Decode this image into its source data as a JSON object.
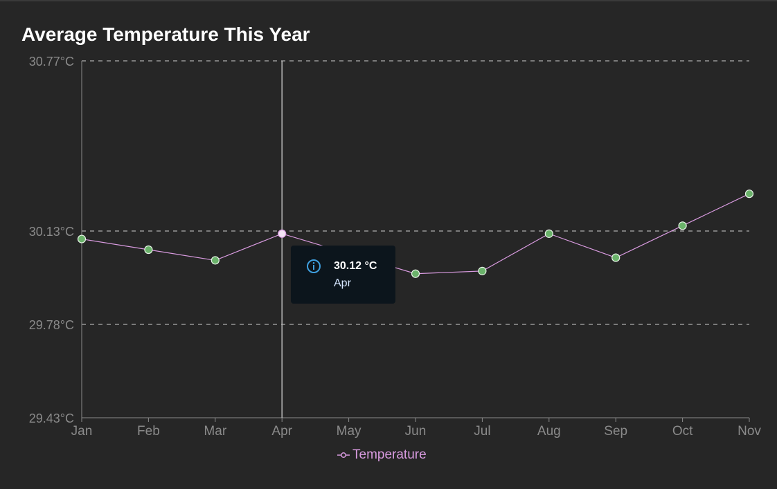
{
  "chart_data": {
    "type": "line",
    "title": "Average Temperature This Year",
    "categories": [
      "Jan",
      "Feb",
      "Mar",
      "Apr",
      "May",
      "Jun",
      "Jul",
      "Aug",
      "Sep",
      "Oct",
      "Nov"
    ],
    "series": [
      {
        "name": "Temperature",
        "values": [
          30.1,
          30.06,
          30.02,
          30.12,
          null,
          29.97,
          29.98,
          30.12,
          30.03,
          30.15,
          30.27
        ],
        "color": "#d99be0",
        "point_color": "#6ab26a"
      }
    ],
    "yticks": [
      30.77,
      30.13,
      29.78,
      29.43
    ],
    "ytick_labels": [
      "30.77°C",
      "30.13°C",
      "29.78°C",
      "29.43°C"
    ],
    "ylim": [
      29.43,
      30.77
    ],
    "y_unit": "°C",
    "grid": "dashed horizontal",
    "legend_position": "bottom-center",
    "highlight_category": "Apr"
  },
  "tooltip": {
    "value": "30.12 °C",
    "label": "Apr",
    "icon": "info-icon"
  },
  "legend": {
    "label": "Temperature"
  },
  "colors": {
    "background": "#262626",
    "line": "#d99be0",
    "point": "#6ab26a",
    "axis_text": "#8a8a8a",
    "grid": "#d0d0d0",
    "tooltip_bg": "#0c151c"
  }
}
